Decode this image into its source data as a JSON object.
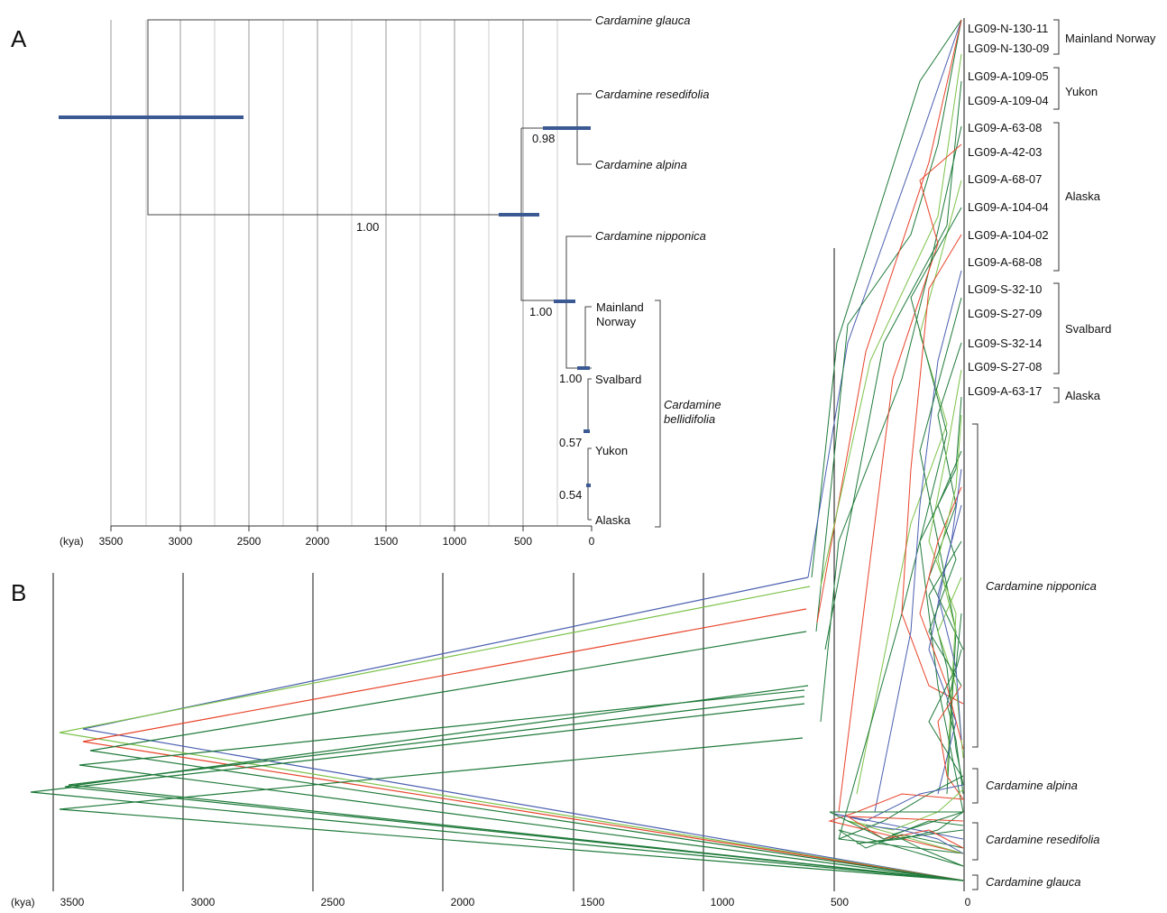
{
  "panelA": {
    "label": "A",
    "axis_unit": "(kya)",
    "ticks": [
      "3500",
      "3000",
      "2500",
      "2000",
      "1500",
      "1000",
      "500",
      "0"
    ],
    "taxa": {
      "glauca": "Cardamine glauca",
      "resedifolia": "Cardamine resedifolia",
      "alpina": "Cardamine alpina",
      "nipponica": "Cardamine nipponica",
      "bellidifolia": [
        "Cardamine",
        "bellidifolia"
      ]
    },
    "populations": {
      "mainland": [
        "Mainland",
        "Norway"
      ],
      "svalbard": "Svalbard",
      "yukon": "Yukon",
      "alaska": "Alaska"
    },
    "support": {
      "root": "1.00",
      "resedifolia_alpina": "0.98",
      "nipponica_bellidifolia": "1.00",
      "bellidifolia": "1.00",
      "svalbard_yukon_alaska": "0.57",
      "yukon_alaska": "0.54"
    }
  },
  "panelB": {
    "label": "B",
    "axis_unit": "(kya)",
    "ticks": [
      "3500",
      "3000",
      "2500",
      "2000",
      "1500",
      "1000",
      "500",
      "0"
    ],
    "samples": [
      "LG09-N-130-11",
      "LG09-N-130-09",
      "LG09-A-109-05",
      "LG09-A-109-04",
      "LG09-A-63-08",
      "LG09-A-42-03",
      "LG09-A-68-07",
      "LG09-A-104-04",
      "LG09-A-104-02",
      "LG09-A-68-08",
      "LG09-S-32-10",
      "LG09-S-27-09",
      "LG09-S-32-14",
      "LG09-S-27-08",
      "LG09-A-63-17"
    ],
    "groups": [
      "Mainland Norway",
      "Yukon",
      "Alaska",
      "Svalbard",
      "Alaska"
    ],
    "species": [
      "Cardamine nipponica",
      "Cardamine alpina",
      "Cardamine resedifolia",
      "Cardamine glauca"
    ],
    "colors": {
      "dark": "#1f7a3a",
      "light": "#7cc24a",
      "red": "#e8432a",
      "blue": "#4a5fb0"
    }
  }
}
